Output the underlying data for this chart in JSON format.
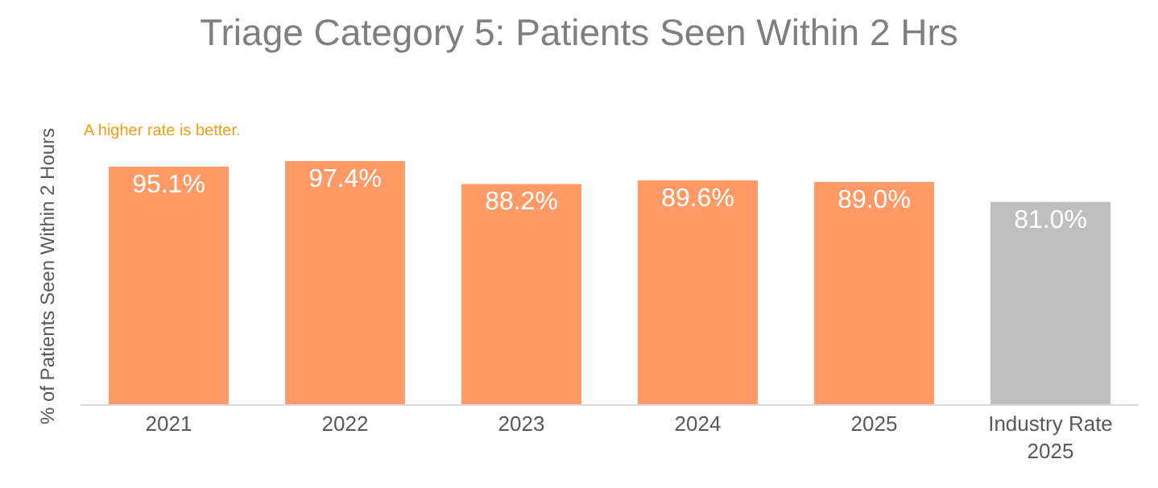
{
  "chart_data": {
    "type": "bar",
    "title": "Triage Category 5: Patients Seen Within 2 Hrs",
    "ylabel": "% of Patients Seen Within 2 Hours",
    "annotations": [
      "A higher rate is better."
    ],
    "categories": [
      "2021",
      "2022",
      "2023",
      "2024",
      "2025",
      "Industry Rate 2025"
    ],
    "values": [
      95.1,
      97.4,
      88.2,
      89.6,
      89.0,
      81.0
    ],
    "colors": [
      "#ff9966",
      "#ff9966",
      "#ff9966",
      "#ff9966",
      "#ff9966",
      "#bfbfbf"
    ],
    "value_labels": [
      "95.1%",
      "97.4%",
      "88.2%",
      "89.6%",
      "89.0%",
      "81.0%"
    ],
    "tick_labels": "x",
    "grid": false,
    "legend": false
  }
}
